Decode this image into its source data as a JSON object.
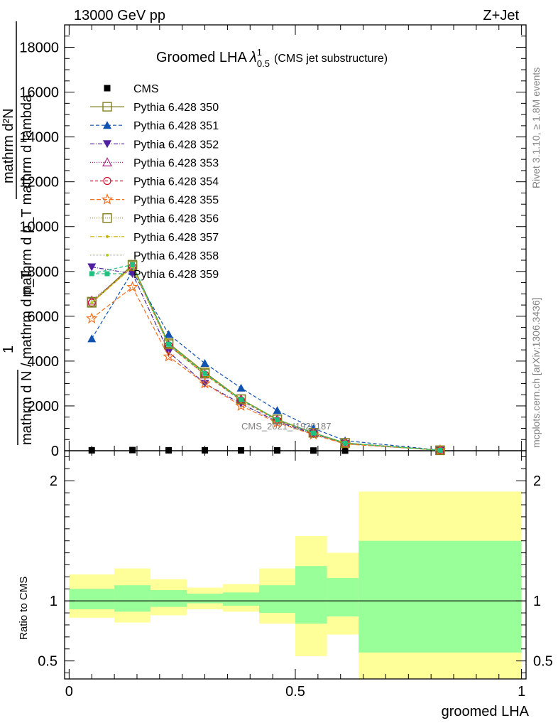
{
  "header": {
    "left": "13000 GeV pp",
    "right": "Z+Jet",
    "side_top": "Rivet 3.1.10, ≥ 1.8M events",
    "side_bottom": "mcplots.cern.ch [arXiv:1306.3436]",
    "watermark": "CMS_2021_I1920187"
  },
  "title": {
    "main": "Groomed LHA",
    "lambda": "λ",
    "sup": "1",
    "sub": "0.5",
    "suffix": "(CMS jet substructure)"
  },
  "ylabel_main": {
    "line1": "mathrm d²N",
    "line2": "mathrm d p_T mathrm d lambda",
    "line3": "1",
    "line4": "mathrm d N / mathrm d p_T"
  },
  "ylabel_ratio": "Ratio to CMS",
  "xlabel": "groomed LHA",
  "chart_data": [
    {
      "type": "line",
      "panel": "main",
      "xlim": [
        -0.01,
        1.01
      ],
      "ylim": [
        0,
        19000
      ],
      "yticks": [
        0,
        2000,
        4000,
        6000,
        8000,
        10000,
        12000,
        14000,
        16000,
        18000
      ],
      "ytick_labels": [
        "0",
        "2000",
        "4000",
        "6000",
        "8000",
        "10000",
        "12000",
        "14000",
        "16000",
        "18000"
      ],
      "x": [
        0.05,
        0.14,
        0.22,
        0.3,
        0.38,
        0.46,
        0.54,
        0.61,
        0.82
      ],
      "series": [
        {
          "name": "CMS",
          "color": "#000000",
          "dash": "",
          "marker": "filledSquare",
          "values": [
            20,
            30,
            20,
            20,
            15,
            15,
            10,
            5,
            3
          ]
        },
        {
          "name": "Pythia 6.428 350",
          "color": "#808020",
          "dash": "",
          "marker": "openSquare",
          "values": [
            6600,
            8300,
            4800,
            3500,
            2300,
            1400,
            800,
            350,
            20
          ]
        },
        {
          "name": "Pythia 6.428 351",
          "color": "#1052b0",
          "dash": "5,3",
          "marker": "triangleUp",
          "values": [
            5000,
            8000,
            5200,
            3900,
            2800,
            1800,
            1000,
            450,
            25
          ]
        },
        {
          "name": "Pythia 6.428 352",
          "color": "#5020a0",
          "dash": "6,2,1,2",
          "marker": "triangleDown",
          "values": [
            8200,
            7900,
            4400,
            3000,
            2100,
            1300,
            750,
            320,
            20
          ]
        },
        {
          "name": "Pythia 6.428 353",
          "color": "#b02080",
          "dash": "1,2",
          "marker": "openTriangle",
          "values": [
            6700,
            8200,
            4700,
            3400,
            2300,
            1400,
            800,
            340,
            20
          ]
        },
        {
          "name": "Pythia 6.428 354",
          "color": "#d01030",
          "dash": "4,3",
          "marker": "openCircle",
          "values": [
            6600,
            8200,
            4700,
            3400,
            2250,
            1350,
            780,
            330,
            20
          ]
        },
        {
          "name": "Pythia 6.428 355",
          "color": "#f07020",
          "dash": "6,3",
          "marker": "openStar",
          "values": [
            5900,
            7300,
            4200,
            3000,
            2000,
            1250,
            720,
            300,
            18
          ]
        },
        {
          "name": "Pythia 6.428 356",
          "color": "#808020",
          "dash": "1,2",
          "marker": "openSquare",
          "values": [
            6650,
            8250,
            4750,
            3450,
            2300,
            1400,
            800,
            345,
            20
          ]
        },
        {
          "name": "Pythia 6.428 357",
          "color": "#c8b000",
          "dash": "6,2,1,2",
          "marker": "smallDot",
          "values": [
            6600,
            8200,
            4750,
            3450,
            2280,
            1380,
            790,
            340,
            20
          ]
        },
        {
          "name": "Pythia 6.428 358",
          "color": "#b0d020",
          "dash": "1,1",
          "marker": "smallDot",
          "values": [
            6600,
            8200,
            4700,
            3400,
            2270,
            1380,
            790,
            340,
            20
          ]
        },
        {
          "name": "Pythia 6.428 359",
          "color": "#20c080",
          "dash": "5,3",
          "marker": "filledSquareSmall",
          "values": [
            7900,
            8300,
            4750,
            3450,
            2280,
            1380,
            790,
            340,
            20
          ]
        }
      ]
    },
    {
      "type": "area",
      "panel": "ratio",
      "xlim": [
        -0.01,
        1.01
      ],
      "ylim": [
        0.35,
        2.25
      ],
      "yticks": [
        0.5,
        1,
        2
      ],
      "ytick_labels": [
        "0.5",
        "1",
        "2"
      ],
      "xticks": [
        0,
        0.5,
        1
      ],
      "xtick_labels": [
        "0",
        "0.5",
        "1"
      ],
      "bins": [
        {
          "lo": 0.0,
          "hi": 0.1,
          "inner": [
            0.93,
            1.1
          ],
          "outer": [
            0.86,
            1.22
          ]
        },
        {
          "lo": 0.1,
          "hi": 0.18,
          "inner": [
            0.91,
            1.13
          ],
          "outer": [
            0.82,
            1.27
          ]
        },
        {
          "lo": 0.18,
          "hi": 0.26,
          "inner": [
            0.95,
            1.09
          ],
          "outer": [
            0.88,
            1.18
          ]
        },
        {
          "lo": 0.26,
          "hi": 0.34,
          "inner": [
            0.98,
            1.06
          ],
          "outer": [
            0.93,
            1.11
          ]
        },
        {
          "lo": 0.34,
          "hi": 0.42,
          "inner": [
            0.96,
            1.07
          ],
          "outer": [
            0.91,
            1.14
          ]
        },
        {
          "lo": 0.42,
          "hi": 0.5,
          "inner": [
            0.9,
            1.13
          ],
          "outer": [
            0.81,
            1.27
          ]
        },
        {
          "lo": 0.5,
          "hi": 0.57,
          "inner": [
            0.81,
            1.29
          ],
          "outer": [
            0.54,
            1.54
          ]
        },
        {
          "lo": 0.57,
          "hi": 0.64,
          "inner": [
            0.87,
            1.19
          ],
          "outer": [
            0.72,
            1.4
          ]
        },
        {
          "lo": 0.64,
          "hi": 1.0,
          "inner": [
            0.57,
            1.5
          ],
          "outer": [
            0.35,
            1.91
          ]
        }
      ],
      "colors": {
        "inner": "#99ff99",
        "outer": "#ffff99"
      }
    }
  ]
}
